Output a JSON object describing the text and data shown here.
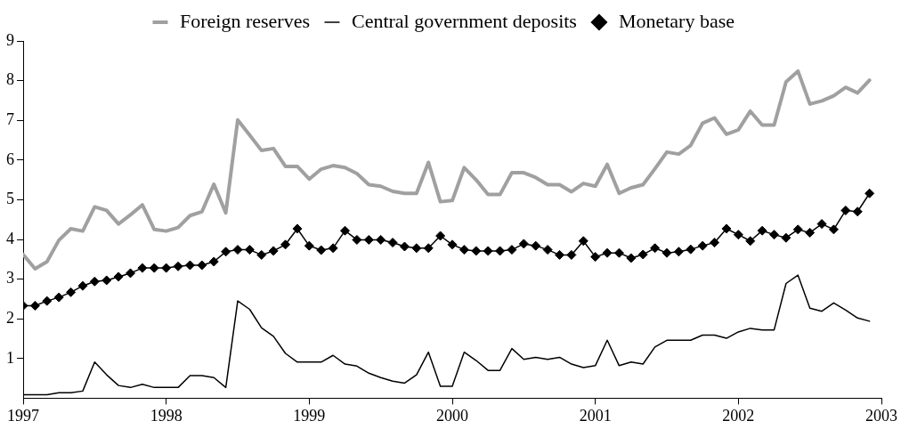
{
  "chart_data": {
    "type": "line",
    "x": [
      "1997-01",
      "1997-02",
      "1997-03",
      "1997-04",
      "1997-05",
      "1997-06",
      "1997-07",
      "1997-08",
      "1997-09",
      "1997-10",
      "1997-11",
      "1997-12",
      "1998-01",
      "1998-02",
      "1998-03",
      "1998-04",
      "1998-05",
      "1998-06",
      "1998-07",
      "1998-08",
      "1998-09",
      "1998-10",
      "1998-11",
      "1998-12",
      "1999-01",
      "1999-02",
      "1999-03",
      "1999-04",
      "1999-05",
      "1999-06",
      "1999-07",
      "1999-08",
      "1999-09",
      "1999-10",
      "1999-11",
      "1999-12",
      "2000-01",
      "2000-02",
      "2000-03",
      "2000-04",
      "2000-05",
      "2000-06",
      "2000-07",
      "2000-08",
      "2000-09",
      "2000-10",
      "2000-11",
      "2000-12",
      "2001-01",
      "2001-02",
      "2001-03",
      "2001-04",
      "2001-05",
      "2001-06",
      "2001-07",
      "2001-08",
      "2001-09",
      "2001-10",
      "2001-11",
      "2001-12",
      "2002-01",
      "2002-02",
      "2002-03",
      "2002-04",
      "2002-05",
      "2002-06",
      "2002-07",
      "2002-08",
      "2002-09",
      "2002-10",
      "2002-11",
      "2002-12"
    ],
    "series": [
      {
        "name": "Foreign reserves",
        "color": "#a0a0a0",
        "marker": "none",
        "values": [
          3.62,
          3.26,
          3.44,
          3.98,
          4.27,
          4.21,
          4.82,
          4.73,
          4.39,
          4.62,
          4.87,
          4.25,
          4.21,
          4.3,
          4.6,
          4.7,
          5.39,
          4.67,
          7.01,
          6.63,
          6.24,
          6.29,
          5.84,
          5.84,
          5.52,
          5.77,
          5.86,
          5.81,
          5.66,
          5.38,
          5.34,
          5.21,
          5.16,
          5.16,
          5.94,
          4.95,
          4.98,
          5.81,
          5.5,
          5.13,
          5.13,
          5.68,
          5.68,
          5.56,
          5.38,
          5.38,
          5.2,
          5.41,
          5.34,
          5.89,
          5.16,
          5.3,
          5.38,
          5.78,
          6.2,
          6.15,
          6.37,
          6.93,
          7.06,
          6.65,
          6.76,
          7.23,
          6.88,
          6.88,
          7.97,
          8.24,
          7.41,
          7.49,
          7.62,
          7.83,
          7.69,
          8.01
        ]
      },
      {
        "name": "Central government deposits",
        "color": "#000000",
        "marker": "none",
        "values": [
          0.09,
          0.09,
          0.09,
          0.14,
          0.14,
          0.18,
          0.91,
          0.59,
          0.32,
          0.27,
          0.35,
          0.27,
          0.27,
          0.27,
          0.57,
          0.57,
          0.52,
          0.27,
          2.45,
          2.24,
          1.77,
          1.56,
          1.13,
          0.91,
          0.91,
          0.91,
          1.08,
          0.86,
          0.81,
          0.63,
          0.52,
          0.43,
          0.38,
          0.59,
          1.16,
          0.3,
          0.3,
          1.16,
          0.95,
          0.7,
          0.7,
          1.25,
          0.98,
          1.03,
          0.98,
          1.03,
          0.86,
          0.77,
          0.82,
          1.46,
          0.82,
          0.91,
          0.86,
          1.29,
          1.46,
          1.46,
          1.46,
          1.59,
          1.59,
          1.51,
          1.67,
          1.76,
          1.72,
          1.72,
          2.89,
          3.1,
          2.27,
          2.19,
          2.4,
          2.22,
          2.02,
          1.94
        ]
      },
      {
        "name": "Monetary base",
        "color": "#000000",
        "marker": "diamond",
        "values": [
          2.33,
          2.33,
          2.45,
          2.54,
          2.67,
          2.83,
          2.94,
          2.97,
          3.06,
          3.15,
          3.28,
          3.28,
          3.28,
          3.32,
          3.35,
          3.35,
          3.44,
          3.69,
          3.74,
          3.74,
          3.61,
          3.71,
          3.87,
          4.27,
          3.84,
          3.73,
          3.78,
          4.22,
          3.99,
          3.99,
          3.99,
          3.92,
          3.82,
          3.78,
          3.78,
          4.09,
          3.87,
          3.74,
          3.71,
          3.71,
          3.71,
          3.74,
          3.89,
          3.84,
          3.74,
          3.61,
          3.61,
          3.96,
          3.56,
          3.66,
          3.66,
          3.53,
          3.62,
          3.78,
          3.66,
          3.69,
          3.75,
          3.84,
          3.92,
          4.27,
          4.12,
          3.96,
          4.22,
          4.12,
          4.04,
          4.25,
          4.17,
          4.39,
          4.25,
          4.73,
          4.7,
          5.16
        ]
      }
    ],
    "xlim": [
      "1997",
      "2003"
    ],
    "xticks": [
      "1997",
      "1998",
      "1999",
      "2000",
      "2001",
      "2002",
      "2003"
    ],
    "ylim": [
      0,
      9
    ],
    "yticks": [
      1,
      2,
      3,
      4,
      5,
      6,
      7,
      8,
      9
    ],
    "grid": false,
    "legend": "top"
  }
}
